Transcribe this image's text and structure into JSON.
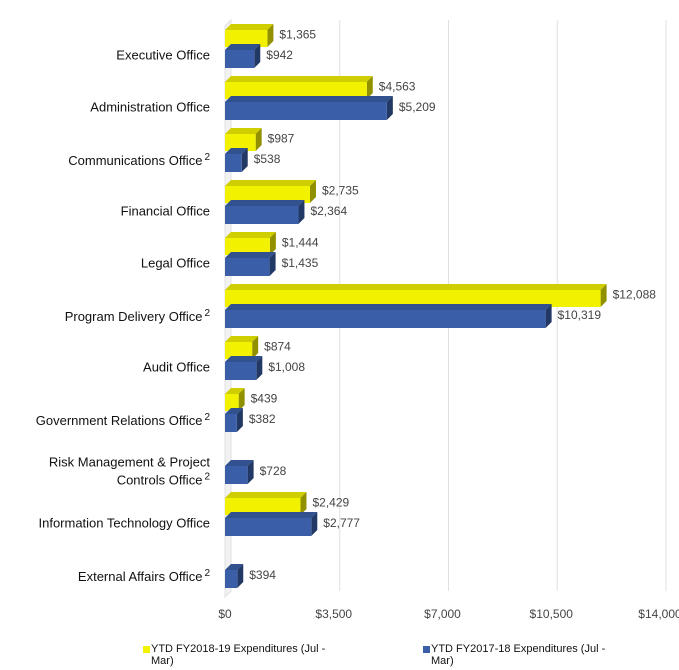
{
  "chart_data": {
    "type": "bar",
    "orientation": "horizontal",
    "categories": [
      "Executive Office",
      "Administration Office",
      "Communications Office",
      "Financial Office",
      "Legal Office",
      "Program Delivery Office",
      "Audit Office",
      "Government Relations Office",
      "Risk Management & Project Controls Office",
      "Information Technology Office",
      "External Affairs Office"
    ],
    "category_notes": [
      null,
      null,
      "2",
      null,
      null,
      "2",
      null,
      "2",
      "2",
      null,
      "2"
    ],
    "series": [
      {
        "name": "YTD FY2018-19 Expenditures (Jul - Mar)",
        "color": "#f2f200",
        "values": [
          1365,
          4563,
          987,
          2735,
          1444,
          12088,
          874,
          439,
          null,
          2429,
          null
        ],
        "value_labels": [
          "$1,365",
          "$4,563",
          "$987",
          "$2,735",
          "$1,444",
          "$12,088",
          "$874",
          "$439",
          null,
          "$2,429",
          null
        ]
      },
      {
        "name": "YTD FY2017-18 Expenditures (Jul - Mar)",
        "color": "#3a5fa8",
        "values": [
          942,
          5209,
          538,
          2364,
          1435,
          10319,
          1008,
          382,
          728,
          2777,
          394
        ],
        "value_labels": [
          "$942",
          "$5,209",
          "$538",
          "$2,364",
          "$1,435",
          "$10,319",
          "$1,008",
          "$382",
          "$728",
          "$2,777",
          "$394"
        ]
      }
    ],
    "xlim": [
      0,
      14000
    ],
    "xticks": [
      {
        "value": 0,
        "label": "$0"
      },
      {
        "value": 3500,
        "label": "$3,500"
      },
      {
        "value": 7000,
        "label": "$7,000"
      },
      {
        "value": 10500,
        "label": "$10,500"
      },
      {
        "value": 14000,
        "label": "$14,000"
      }
    ],
    "grid": true,
    "legend": "bottom"
  }
}
